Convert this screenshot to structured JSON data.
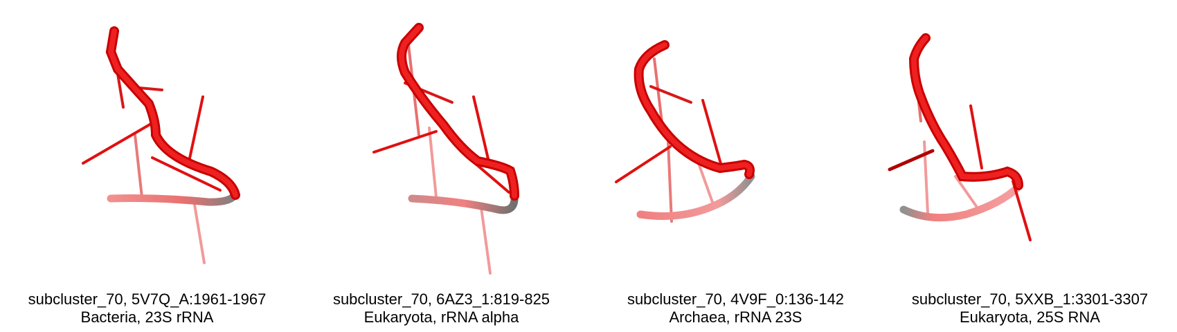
{
  "colors": {
    "strand_front": "#e01010",
    "strand_back": "#f08080",
    "background": "#ffffff",
    "caption_text": "#000000"
  },
  "panels": [
    {
      "title": "subcluster_70, 5V7Q_A:1961-1967",
      "subtitle": "Bacteria, 23S rRNA",
      "image": "rna-backbone-structure"
    },
    {
      "title": "subcluster_70, 6AZ3_1:819-825",
      "subtitle": "Eukaryota, rRNA alpha",
      "image": "rna-backbone-structure"
    },
    {
      "title": "subcluster_70, 4V9F_0:136-142",
      "subtitle": "Archaea, rRNA 23S",
      "image": "rna-backbone-structure"
    },
    {
      "title": "subcluster_70, 5XXB_1:3301-3307",
      "subtitle": "Eukaryota, 25S RNA",
      "image": "rna-backbone-structure"
    }
  ]
}
